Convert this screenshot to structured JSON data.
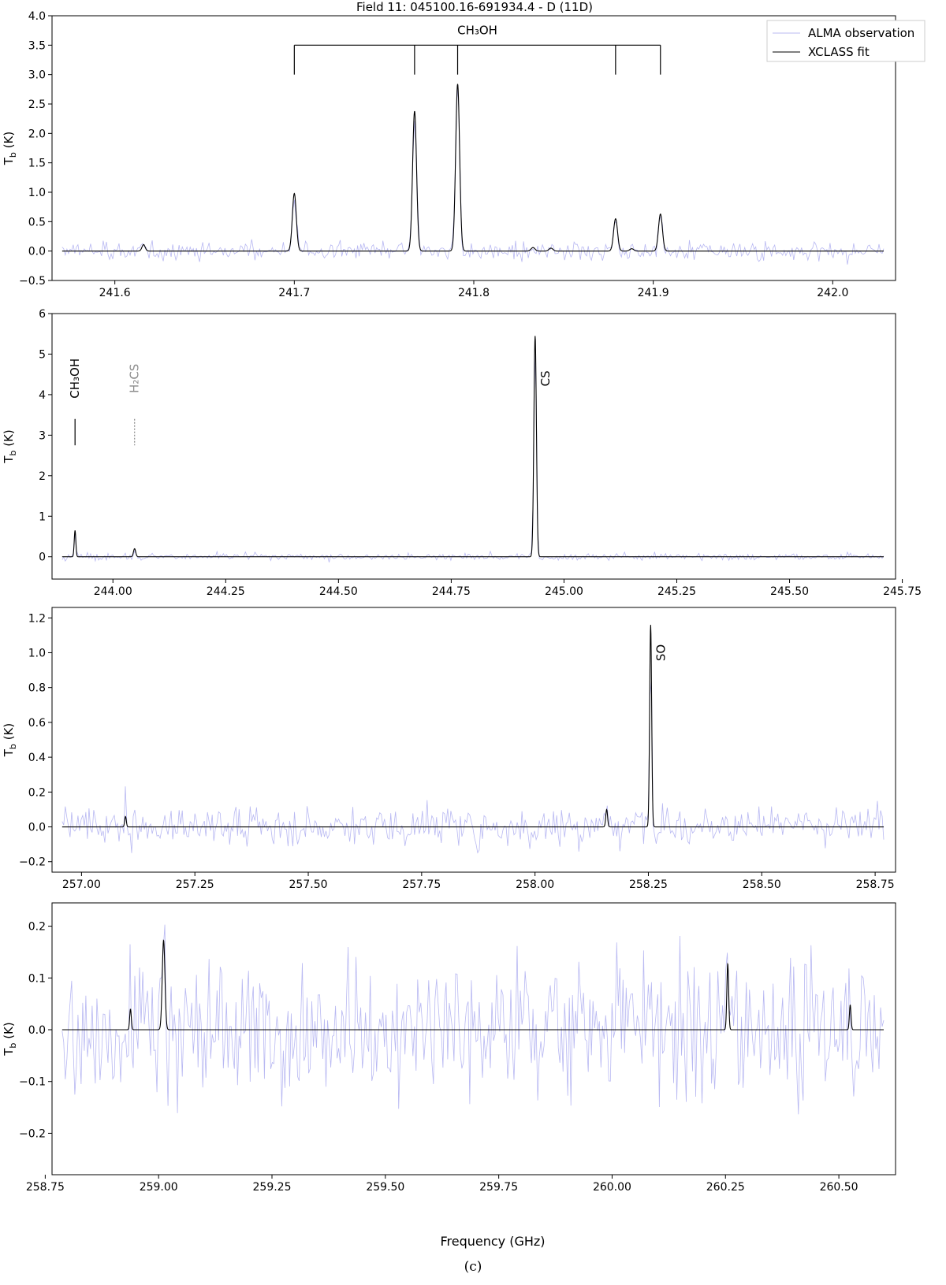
{
  "figure": {
    "title": "Field 11: 045100.16-691934.4 - D (11D)",
    "caption": "(c)",
    "xlabel": "Frequency (GHz)",
    "legend": [
      "ALMA observation",
      "XCLASS fit"
    ],
    "colors": {
      "observation": "#b8b8f2",
      "fit": "#000000",
      "frame": "#000000",
      "secondary_label": "#8c8c8c"
    }
  },
  "chart_data": [
    {
      "type": "line",
      "xlim": [
        241.565,
        242.035
      ],
      "ylim": [
        -0.5,
        4.0
      ],
      "xticks": [
        "241.6",
        "241.7",
        "241.8",
        "241.9",
        "242.0"
      ],
      "yticks": [
        "−0.5",
        "0.0",
        "0.5",
        "1.0",
        "1.5",
        "2.0",
        "2.5",
        "3.0",
        "3.5",
        "4.0"
      ],
      "ylabel": "T_b (K)",
      "legend_position": "top-right",
      "noise_sigma": 0.08,
      "peaks": [
        {
          "x": 241.616,
          "y": 0.11,
          "w": 0.0009
        },
        {
          "x": 241.7,
          "y": 0.98,
          "w": 0.0011
        },
        {
          "x": 241.767,
          "y": 2.38,
          "w": 0.0011
        },
        {
          "x": 241.791,
          "y": 2.84,
          "w": 0.0011
        },
        {
          "x": 241.833,
          "y": 0.06,
          "w": 0.0011
        },
        {
          "x": 241.843,
          "y": 0.05,
          "w": 0.0011
        },
        {
          "x": 241.879,
          "y": 0.55,
          "w": 0.0011
        },
        {
          "x": 241.888,
          "y": 0.04,
          "w": 0.0011
        },
        {
          "x": 241.904,
          "y": 0.63,
          "w": 0.0011
        }
      ],
      "line_ids": [
        {
          "type": "bracket",
          "label": "CH₃OH",
          "xs": [
            241.7,
            241.767,
            241.791,
            241.879,
            241.904
          ],
          "y": 3.5,
          "y_bottom": 3.0,
          "label_y": 3.75
        }
      ]
    },
    {
      "type": "line",
      "xlim": [
        243.865,
        245.735
      ],
      "ylim": [
        -0.55,
        6.0
      ],
      "xticks": [
        "244.00",
        "244.25",
        "244.50",
        "244.75",
        "245.00",
        "245.25",
        "245.50",
        "245.75"
      ],
      "yticks": [
        "0",
        "1",
        "2",
        "3",
        "4",
        "5",
        "6"
      ],
      "ylabel": "T_b (K)",
      "noise_sigma": 0.05,
      "peaks": [
        {
          "x": 243.916,
          "y": 0.65,
          "w": 0.0018
        },
        {
          "x": 244.048,
          "y": 0.2,
          "w": 0.0025
        },
        {
          "x": 244.936,
          "y": 5.45,
          "w": 0.0028
        }
      ],
      "line_ids": [
        {
          "type": "tick",
          "label": "CH₃OH",
          "x": 243.916,
          "y_top": 3.4,
          "y_bottom": 2.75,
          "label_y": 4.4,
          "color": "#000000"
        },
        {
          "type": "tick",
          "label": "H₂CS",
          "x": 244.048,
          "y_top": 3.4,
          "y_bottom": 2.75,
          "label_y": 4.4,
          "color": "#8c8c8c",
          "dashed": true
        },
        {
          "type": "label",
          "label": "CS",
          "x": 244.936,
          "label_y": 4.4
        }
      ]
    },
    {
      "type": "line",
      "xlim": [
        256.935,
        258.795
      ],
      "ylim": [
        -0.26,
        1.26
      ],
      "xticks": [
        "257.00",
        "257.25",
        "257.50",
        "257.75",
        "258.00",
        "258.25",
        "258.50",
        "258.75"
      ],
      "yticks": [
        "−0.2",
        "0.0",
        "0.2",
        "0.4",
        "0.6",
        "0.8",
        "1.0",
        "1.2"
      ],
      "ylabel": "T_b (K)",
      "noise_sigma": 0.06,
      "peaks": [
        {
          "x": 257.097,
          "y": 0.06,
          "w": 0.0018
        },
        {
          "x": 258.158,
          "y": 0.1,
          "w": 0.002
        },
        {
          "x": 258.255,
          "y": 1.16,
          "w": 0.0022
        }
      ],
      "line_ids": [
        {
          "type": "label",
          "label": "SO",
          "x": 258.255,
          "label_y": 1.0
        }
      ]
    },
    {
      "type": "line",
      "xlim": [
        258.765,
        260.625
      ],
      "ylim": [
        -0.28,
        0.245
      ],
      "xticks": [
        "258.75",
        "259.00",
        "259.25",
        "259.50",
        "259.75",
        "260.00",
        "260.25",
        "260.50"
      ],
      "yticks": [
        "−0.2",
        "−0.1",
        "0.0",
        "0.1",
        "0.2"
      ],
      "ylabel": "T_b (K)",
      "noise_sigma": 0.075,
      "peaks": [
        {
          "x": 258.938,
          "y": 0.04,
          "w": 0.0018
        },
        {
          "x": 259.011,
          "y": 0.173,
          "w": 0.003
        },
        {
          "x": 260.255,
          "y": 0.128,
          "w": 0.002
        },
        {
          "x": 260.525,
          "y": 0.048,
          "w": 0.0018
        }
      ],
      "line_ids": []
    }
  ]
}
